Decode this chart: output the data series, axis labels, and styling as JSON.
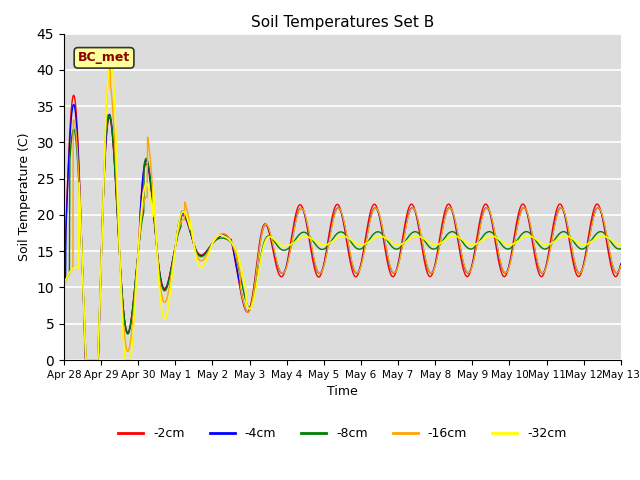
{
  "title": "Soil Temperatures Set B",
  "xlabel": "Time",
  "ylabel": "Soil Temperature (C)",
  "annotation": "BC_met",
  "ylim": [
    0,
    45
  ],
  "background_color": "#dcdcdc",
  "series_colors": [
    "red",
    "blue",
    "green",
    "orange",
    "yellow"
  ],
  "series_labels": [
    "-2cm",
    "-4cm",
    "-8cm",
    "-16cm",
    "-32cm"
  ],
  "tick_labels": [
    "Apr 28",
    "Apr 29",
    "Apr 30",
    "May 1",
    "May 2",
    "May 3",
    "May 4",
    "May 5",
    "May 6",
    "May 7",
    "May 8",
    "May 9",
    "May 10",
    "May 11",
    "May 12",
    "May 13"
  ],
  "yticks": [
    0,
    5,
    10,
    15,
    20,
    25,
    30,
    35,
    40,
    45
  ],
  "num_points": 1440,
  "line_width": 1.0
}
